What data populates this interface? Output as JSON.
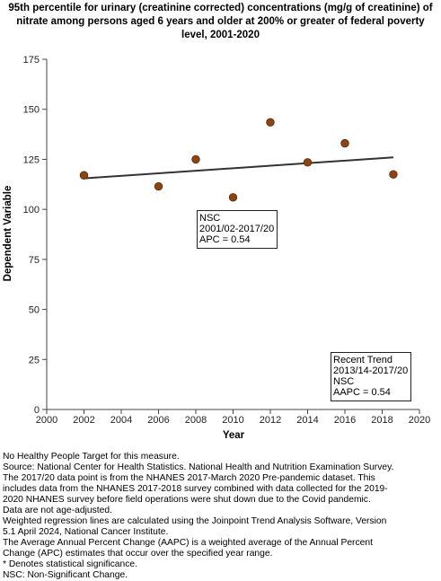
{
  "title_lines": [
    "95th percentile for urinary (creatinine corrected) concentrations (mg/g of creatinine) of",
    "nitrate among  persons aged 6 years and older at 200% or greater of federal poverty",
    "level, 2001-2020"
  ],
  "chart_data": {
    "type": "scatter",
    "title": "95th percentile for urinary (creatinine corrected) concentrations (mg/g of creatinine) of nitrate among  persons aged 6 years and older at 200% or greater of federal poverty level, 2001-2020",
    "xlabel": "Year",
    "ylabel": "Dependent Variable",
    "xlim": [
      2000,
      2020
    ],
    "ylim": [
      0,
      175
    ],
    "x_ticks": [
      "2000",
      "2002",
      "2004",
      "2006",
      "2008",
      "2010",
      "2012",
      "2014",
      "2016",
      "2018",
      "2020"
    ],
    "y_ticks": [
      "0",
      "25",
      "50",
      "75",
      "100",
      "125",
      "150",
      "175"
    ],
    "grid": false,
    "points": [
      {
        "x": 2002,
        "y": 117
      },
      {
        "x": 2006,
        "y": 111.5
      },
      {
        "x": 2008,
        "y": 125
      },
      {
        "x": 2010,
        "y": 106
      },
      {
        "x": 2012,
        "y": 143.5
      },
      {
        "x": 2014,
        "y": 123.5
      },
      {
        "x": 2016,
        "y": 133
      },
      {
        "x": 2018.6,
        "y": 117.5
      }
    ],
    "trend_line": {
      "x": [
        2002,
        2018.6
      ],
      "y": [
        115.5,
        126
      ]
    },
    "marker_color": "#8B4513",
    "line_color": "#333333",
    "annotations": [
      [
        "NSC",
        "2001/02-2017/20",
        "APC =  0.54"
      ],
      [
        "Recent Trend",
        "2013/14-2017/20",
        "NSC",
        "AAPC =  0.54"
      ]
    ]
  },
  "footnotes": [
    "No Healthy People Target for this measure.",
    "Source: National Center for Health Statistics. National Health and Nutrition Examination Survey.",
    "The 2017/20 data point is from the NHANES 2017-March 2020 Pre-pandemic dataset. This",
    "includes data from the NHANES 2017-2018 survey combined with data collected for the 2019-",
    "2020 NHANES survey before field operations were shut down due to the Covid pandemic.",
    "Data are not age-adjusted.",
    "Weighted regression lines are calculated using the Joinpoint Trend Analysis Software, Version",
    "5.1 April 2024, National Cancer Institute.",
    "The Average Annual Percent Change (AAPC) is a weighted average of the Annual Percent",
    "Change (APC) estimates that occur over the specified year range.",
    "* Denotes statistical significance.",
    "NSC: Non-Significant Change."
  ]
}
